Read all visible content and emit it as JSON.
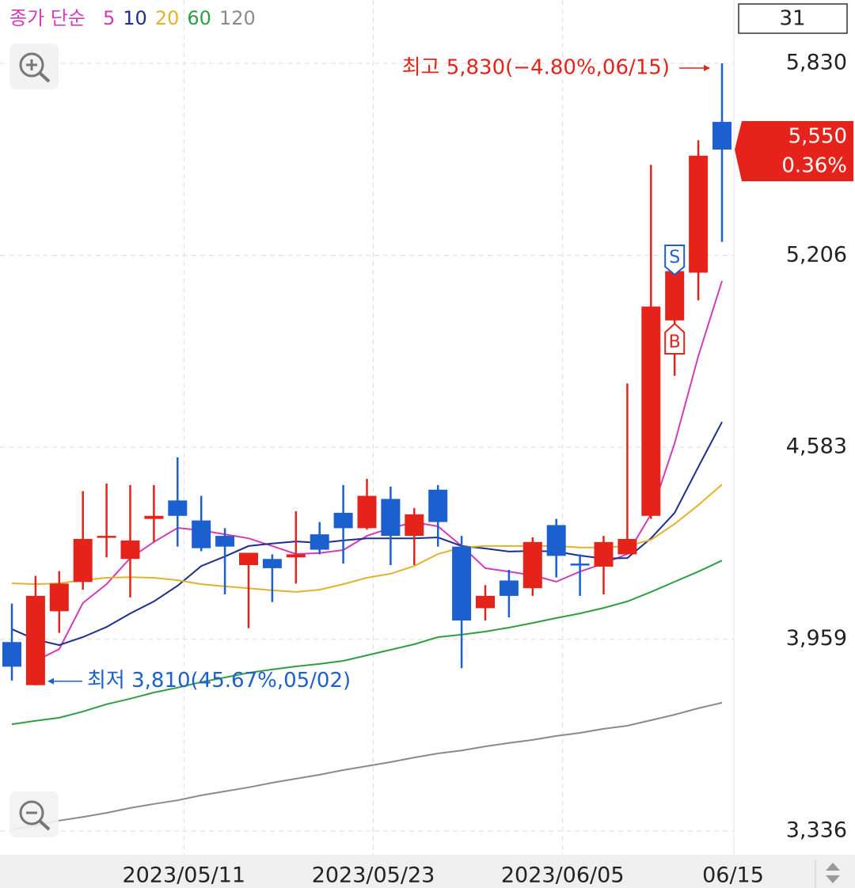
{
  "chart_data": {
    "type": "candlestick",
    "legend_title": "종가 단순",
    "period_box": "31",
    "categories": [
      null,
      null,
      null,
      null,
      null,
      null,
      null,
      "2023/05/11",
      null,
      null,
      null,
      null,
      null,
      null,
      null,
      "2023/05/23",
      null,
      null,
      null,
      null,
      null,
      null,
      null,
      "2023/06/05",
      null,
      null,
      null,
      null,
      null,
      null,
      "06/15"
    ],
    "open": [
      3950,
      3810,
      4050,
      4145,
      4290,
      4220,
      4350,
      4410,
      4345,
      4295,
      4200,
      4220,
      4225,
      4300,
      4370,
      4320,
      4415,
      4295,
      4445,
      4260,
      4060,
      4150,
      4125,
      4330,
      4205,
      4195,
      4235,
      4360,
      4995,
      5150,
      5640
    ],
    "high": [
      4075,
      4165,
      4180,
      4440,
      4465,
      4460,
      4460,
      4550,
      4425,
      4320,
      4240,
      4235,
      4375,
      4340,
      4460,
      4480,
      4455,
      4385,
      4460,
      4295,
      4135,
      4185,
      4290,
      4350,
      4235,
      4295,
      4790,
      5500,
      5160,
      5580,
      5830
    ],
    "low": [
      3825,
      3810,
      3980,
      4120,
      4225,
      4095,
      4275,
      4260,
      4245,
      4105,
      3995,
      4080,
      4140,
      4235,
      4205,
      4315,
      4200,
      4200,
      4260,
      3865,
      4020,
      4030,
      4100,
      4160,
      4100,
      4105,
      4235,
      4350,
      4815,
      5060,
      5250
    ],
    "close": [
      3870,
      4100,
      4140,
      4285,
      4295,
      4280,
      4360,
      4360,
      4255,
      4260,
      4240,
      4190,
      4235,
      4250,
      4320,
      4425,
      4295,
      4365,
      4340,
      4020,
      4100,
      4100,
      4275,
      4230,
      4200,
      4275,
      4285,
      5040,
      5155,
      5530,
      5550
    ],
    "up_color": "#e5231b",
    "down_color": "#1c5fcf",
    "series": [
      {
        "name": "5",
        "color": "#d23cb8",
        "values": [
          null,
          3889,
          3927,
          4077,
          4138,
          4223,
          4275,
          4321,
          4313,
          4300,
          4287,
          4262,
          4236,
          4239,
          4249,
          4295,
          4321,
          4339,
          4326,
          4262,
          4190,
          4179,
          4167,
          4146,
          4179,
          4205,
          4236,
          4365,
          4596,
          4879,
          5123
        ]
      },
      {
        "name": "10",
        "color": "#1b2e8f",
        "values": [
          3992,
          3958,
          3940,
          3966,
          3999,
          4043,
          4082,
          4133,
          4197,
          4228,
          4262,
          4270,
          4277,
          4272,
          4280,
          4287,
          4287,
          4287,
          4290,
          4262,
          4254,
          4244,
          4246,
          4244,
          4231,
          4221,
          4223,
          4287,
          4370,
          4519,
          4665
        ]
      },
      {
        "name": "20",
        "color": "#e3b22a",
        "values": [
          4141,
          4138,
          4141,
          4151,
          4159,
          4161,
          4159,
          4151,
          4138,
          4131,
          4125,
          4118,
          4113,
          4120,
          4138,
          4159,
          4172,
          4197,
          4236,
          4257,
          4262,
          4262,
          4262,
          4262,
          4257,
          4257,
          4262,
          4282,
          4334,
          4395,
          4462
        ]
      },
      {
        "name": "60",
        "color": "#2e9e44",
        "values": [
          3683,
          3694,
          3704,
          3724,
          3748,
          3766,
          3786,
          3802,
          3820,
          3835,
          3850,
          3861,
          3871,
          3879,
          3889,
          3907,
          3925,
          3943,
          3966,
          3974,
          3984,
          3997,
          4012,
          4028,
          4043,
          4061,
          4082,
          4113,
          4146,
          4179,
          4215
        ]
      },
      {
        "name": "120",
        "color": "#8a8a8a",
        "values": [
          3341,
          3354,
          3370,
          3382,
          3395,
          3411,
          3424,
          3436,
          3452,
          3465,
          3478,
          3493,
          3506,
          3519,
          3534,
          3547,
          3560,
          3575,
          3588,
          3598,
          3611,
          3622,
          3632,
          3645,
          3655,
          3668,
          3678,
          3696,
          3714,
          3735,
          3753
        ]
      }
    ],
    "ylim": [
      3259,
      5933
    ],
    "yticks": [
      {
        "value": 3336,
        "label": "3,336"
      },
      {
        "value": 3959,
        "label": "3,959"
      },
      {
        "value": 4583,
        "label": "4,583"
      },
      {
        "value": 5206,
        "label": "5,206"
      },
      {
        "value": 5830,
        "label": "5,830"
      }
    ],
    "grid": true,
    "price_tag": {
      "value": 5550,
      "label": "5,550",
      "change": "0.36%"
    },
    "high_annotation": "최고 5,830(−4.80%,06/15)",
    "low_annotation": "최저 3,810(45.67%,05/02)",
    "signals": [
      "S",
      "B"
    ]
  }
}
